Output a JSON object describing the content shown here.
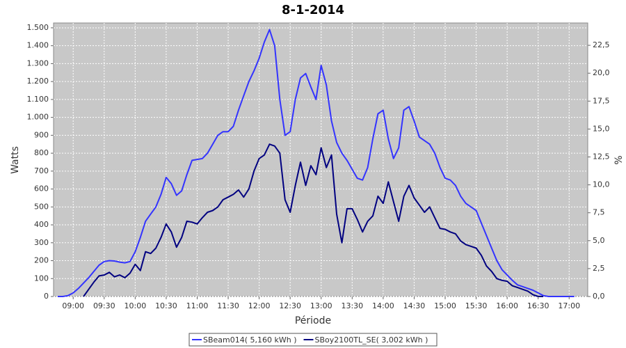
{
  "chart_data": {
    "type": "line",
    "title": "8-1-2014",
    "x_label": "Période",
    "y_label": "Watts",
    "y2_label": "%",
    "x": [
      "08:45",
      "08:50",
      "08:55",
      "09:00",
      "09:05",
      "09:10",
      "09:15",
      "09:20",
      "09:25",
      "09:30",
      "09:35",
      "09:40",
      "09:45",
      "09:50",
      "09:55",
      "10:00",
      "10:05",
      "10:10",
      "10:15",
      "10:20",
      "10:25",
      "10:30",
      "10:35",
      "10:40",
      "10:45",
      "10:50",
      "10:55",
      "11:00",
      "11:05",
      "11:10",
      "11:15",
      "11:20",
      "11:25",
      "11:30",
      "11:35",
      "11:40",
      "11:45",
      "11:50",
      "11:55",
      "12:00",
      "12:05",
      "12:10",
      "12:15",
      "12:20",
      "12:25",
      "12:30",
      "12:35",
      "12:40",
      "12:45",
      "12:50",
      "12:55",
      "13:00",
      "13:05",
      "13:10",
      "13:15",
      "13:20",
      "13:25",
      "13:30",
      "13:35",
      "13:40",
      "13:45",
      "13:50",
      "13:55",
      "14:00",
      "14:05",
      "14:10",
      "14:15",
      "14:20",
      "14:25",
      "14:30",
      "14:35",
      "14:40",
      "14:45",
      "14:50",
      "14:55",
      "15:00",
      "15:05",
      "15:10",
      "15:15",
      "15:20",
      "15:25",
      "15:30",
      "15:35",
      "15:40",
      "15:45",
      "15:50",
      "15:55",
      "16:00",
      "16:05",
      "16:10",
      "16:15",
      "16:20",
      "16:25",
      "16:30",
      "16:35",
      "16:40",
      "16:45",
      "16:50",
      "16:55",
      "17:00",
      "17:05"
    ],
    "series": [
      {
        "name": "SBeam014( 5,160 kWh )",
        "color": "#3333ff",
        "values": [
          0,
          0,
          5,
          20,
          45,
          75,
          105,
          140,
          175,
          195,
          200,
          198,
          192,
          188,
          195,
          250,
          330,
          420,
          460,
          500,
          570,
          665,
          630,
          565,
          590,
          680,
          760,
          765,
          770,
          800,
          850,
          900,
          920,
          920,
          950,
          1040,
          1120,
          1200,
          1260,
          1330,
          1420,
          1490,
          1400,
          1100,
          900,
          920,
          1100,
          1220,
          1245,
          1170,
          1100,
          1290,
          1180,
          980,
          860,
          800,
          760,
          710,
          660,
          650,
          720,
          880,
          1020,
          1040,
          880,
          770,
          830,
          1040,
          1060,
          980,
          890,
          870,
          850,
          800,
          720,
          660,
          650,
          620,
          560,
          520,
          500,
          480,
          410,
          340,
          270,
          200,
          150,
          120,
          90,
          65,
          55,
          45,
          35,
          20,
          5,
          0,
          0,
          0,
          0,
          0,
          0
        ]
      },
      {
        "name": "SBoy2100TL_SE( 3,002 kWh )",
        "color": "#000080",
        "values": [
          null,
          null,
          null,
          null,
          null,
          0,
          40,
          80,
          115,
          120,
          135,
          110,
          120,
          105,
          130,
          180,
          145,
          250,
          240,
          270,
          330,
          405,
          360,
          275,
          330,
          420,
          415,
          405,
          440,
          470,
          480,
          500,
          540,
          555,
          570,
          595,
          555,
          600,
          700,
          770,
          790,
          850,
          840,
          800,
          540,
          470,
          620,
          750,
          620,
          730,
          680,
          830,
          720,
          790,
          460,
          300,
          490,
          490,
          430,
          360,
          420,
          450,
          560,
          520,
          640,
          530,
          420,
          560,
          620,
          550,
          510,
          470,
          500,
          440,
          380,
          375,
          360,
          350,
          310,
          290,
          280,
          270,
          230,
          170,
          140,
          100,
          90,
          85,
          60,
          50,
          40,
          30,
          10,
          0,
          0,
          null,
          null,
          null,
          null,
          null,
          null
        ]
      }
    ],
    "xlim": [
      "08:41",
      "17:18"
    ],
    "xticks": [
      "09:00",
      "09:30",
      "10:00",
      "10:30",
      "11:00",
      "11:30",
      "12:00",
      "12:30",
      "13:00",
      "13:30",
      "14:00",
      "14:30",
      "15:00",
      "15:30",
      "16:00",
      "16:30",
      "17:00"
    ],
    "ylim": [
      0,
      1527
    ],
    "yticks": [
      0,
      100,
      200,
      300,
      400,
      500,
      600,
      700,
      800,
      900,
      {
        "value": 1000,
        "label": "1.000"
      },
      {
        "value": 1100,
        "label": "1.100"
      },
      {
        "value": 1200,
        "label": "1.200"
      },
      {
        "value": 1300,
        "label": "1.300"
      },
      {
        "value": 1400,
        "label": "1.400"
      },
      {
        "value": 1500,
        "label": "1.500"
      }
    ],
    "y2lim": [
      0,
      24.5
    ],
    "y2ticks": [
      {
        "value": 0,
        "label": "0,0"
      },
      {
        "value": 2.5,
        "label": "2,5"
      },
      {
        "value": 5,
        "label": "5,0"
      },
      {
        "value": 7.5,
        "label": "7,5"
      },
      {
        "value": 10,
        "label": "10,0"
      },
      {
        "value": 12.5,
        "label": "12,5"
      },
      {
        "value": 15,
        "label": "15,0"
      },
      {
        "value": 17.5,
        "label": "17,5"
      },
      {
        "value": 20,
        "label": "20,0"
      },
      {
        "value": 22.5,
        "label": "22,5"
      }
    ],
    "grid": true,
    "legend": "bottom"
  }
}
